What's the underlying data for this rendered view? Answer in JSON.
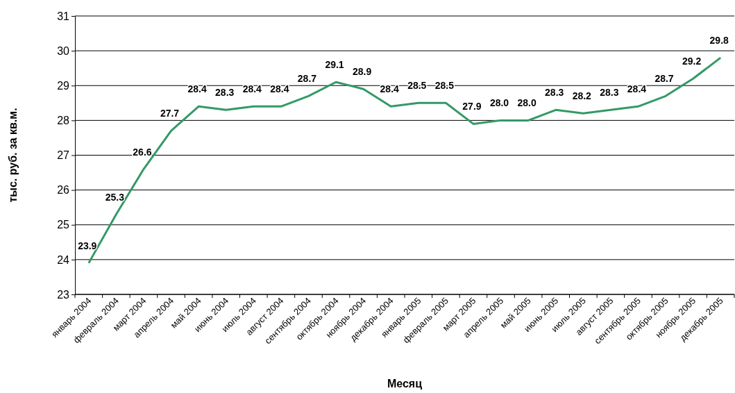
{
  "chart_data": {
    "type": "line",
    "xlabel": "Месяц",
    "ylabel": "тыс. руб. за кв.м.",
    "categories": [
      "январь 2004",
      "февраль 2004",
      "март 2004",
      "апрель 2004",
      "май 2004",
      "июнь 2004",
      "июль 2004",
      "август 2004",
      "сентябрь 2004",
      "октябрь 2004",
      "ноябрь 2004",
      "декабрь 2004",
      "январь 2005",
      "февраль 2005",
      "март 2005",
      "апрель 2005",
      "май 2005",
      "июнь 2005",
      "июль 2005",
      "август 2005",
      "сентябрь 2005",
      "октябрь 2005",
      "ноябрь 2005",
      "декабрь 2005"
    ],
    "series": [
      {
        "color": "#339966",
        "values": [
          23.9,
          25.3,
          26.6,
          27.7,
          28.4,
          28.3,
          28.4,
          28.4,
          28.7,
          29.1,
          28.9,
          28.4,
          28.5,
          28.5,
          27.9,
          28.0,
          28.0,
          28.3,
          28.2,
          28.3,
          28.4,
          28.7,
          29.2,
          29.8
        ],
        "value_labels": [
          "23.9",
          "25.3",
          "26.6",
          "27.7",
          "28.4",
          "28.3",
          "28.4",
          "28.4",
          "28.7",
          "29.1",
          "28.9",
          "28.4",
          "28.5",
          "28.5",
          "27.9",
          "28.0",
          "28.0",
          "28.3",
          "28.2",
          "28.3",
          "28.4",
          "28.7",
          "29.2",
          "29.8"
        ]
      }
    ],
    "ylim": [
      23,
      31
    ],
    "yticks": [
      23,
      24,
      25,
      26,
      27,
      28,
      29,
      30,
      31
    ],
    "grid": "y",
    "marker": "none",
    "line_style": "solid"
  }
}
